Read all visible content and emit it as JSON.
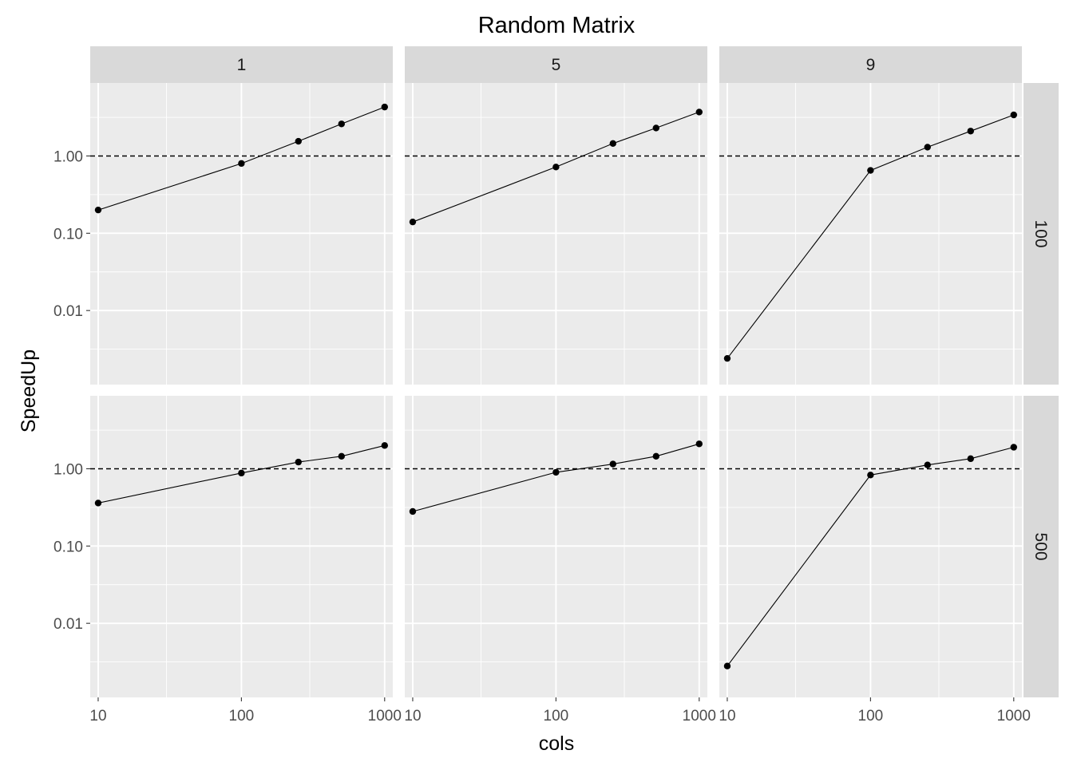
{
  "chart_data": {
    "type": "line",
    "title": "Random Matrix",
    "xlabel": "cols",
    "ylabel": "SpeedUp",
    "x_scale": "log10",
    "y_scale": "log10",
    "xlim": [
      8.8,
      1140
    ],
    "ylim": [
      0.0011,
      8.8
    ],
    "x_ticks": [
      {
        "value": 10,
        "label": "10"
      },
      {
        "value": 100,
        "label": "100"
      },
      {
        "value": 1000,
        "label": "1000"
      }
    ],
    "y_ticks": [
      {
        "value": 0.01,
        "label": "0.01"
      },
      {
        "value": 0.1,
        "label": "0.10"
      },
      {
        "value": 1,
        "label": "1.00"
      }
    ],
    "reference_line": {
      "y": 1,
      "style": "dashed"
    },
    "facet_columns": [
      "1",
      "5",
      "9"
    ],
    "facet_rows": [
      "100",
      "500"
    ],
    "panels": [
      {
        "col_label": "1",
        "row_label": "100",
        "x": [
          10,
          100,
          250,
          500,
          1000
        ],
        "y": [
          0.2,
          0.8,
          1.55,
          2.6,
          4.3
        ]
      },
      {
        "col_label": "5",
        "row_label": "100",
        "x": [
          10,
          100,
          250,
          500,
          1000
        ],
        "y": [
          0.14,
          0.72,
          1.45,
          2.3,
          3.7
        ]
      },
      {
        "col_label": "9",
        "row_label": "100",
        "x": [
          10,
          100,
          250,
          500,
          1000
        ],
        "y": [
          0.0024,
          0.65,
          1.3,
          2.1,
          3.4
        ]
      },
      {
        "col_label": "1",
        "row_label": "500",
        "x": [
          10,
          100,
          250,
          500,
          1000
        ],
        "y": [
          0.36,
          0.88,
          1.22,
          1.45,
          2.0
        ]
      },
      {
        "col_label": "5",
        "row_label": "500",
        "x": [
          10,
          100,
          250,
          500,
          1000
        ],
        "y": [
          0.28,
          0.9,
          1.15,
          1.45,
          2.1
        ]
      },
      {
        "col_label": "9",
        "row_label": "500",
        "x": [
          10,
          100,
          250,
          500,
          1000
        ],
        "y": [
          0.0028,
          0.83,
          1.12,
          1.35,
          1.9
        ]
      }
    ],
    "colors": {
      "panel_background": "#ebebeb",
      "strip_background": "#d9d9d9",
      "grid": "#ffffff",
      "line": "#000000",
      "point": "#000000",
      "reference_line": "#000000"
    },
    "grid": true,
    "legend": "none"
  }
}
